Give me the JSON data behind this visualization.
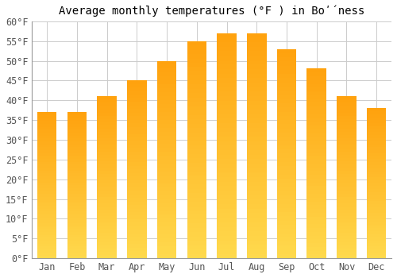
{
  "title": "Average monthly temperatures (°F ) in Boʹ́ness",
  "months": [
    "Jan",
    "Feb",
    "Mar",
    "Apr",
    "May",
    "Jun",
    "Jul",
    "Aug",
    "Sep",
    "Oct",
    "Nov",
    "Dec"
  ],
  "values": [
    37,
    37,
    41,
    45,
    50,
    55,
    57,
    57,
    53,
    48,
    41,
    38
  ],
  "ylim": [
    0,
    60
  ],
  "yticks": [
    0,
    5,
    10,
    15,
    20,
    25,
    30,
    35,
    40,
    45,
    50,
    55,
    60
  ],
  "ytick_labels": [
    "0°F",
    "5°F",
    "10°F",
    "15°F",
    "20°F",
    "25°F",
    "30°F",
    "35°F",
    "40°F",
    "45°F",
    "50°F",
    "55°F",
    "60°F"
  ],
  "bar_color_bottom": "#FFD050",
  "bar_color_top": "#FFA000",
  "background_color": "#ffffff",
  "plot_bg_color": "#ffffff",
  "title_fontsize": 10,
  "tick_fontsize": 8.5,
  "grid_color": "#cccccc",
  "spine_color": "#999999"
}
